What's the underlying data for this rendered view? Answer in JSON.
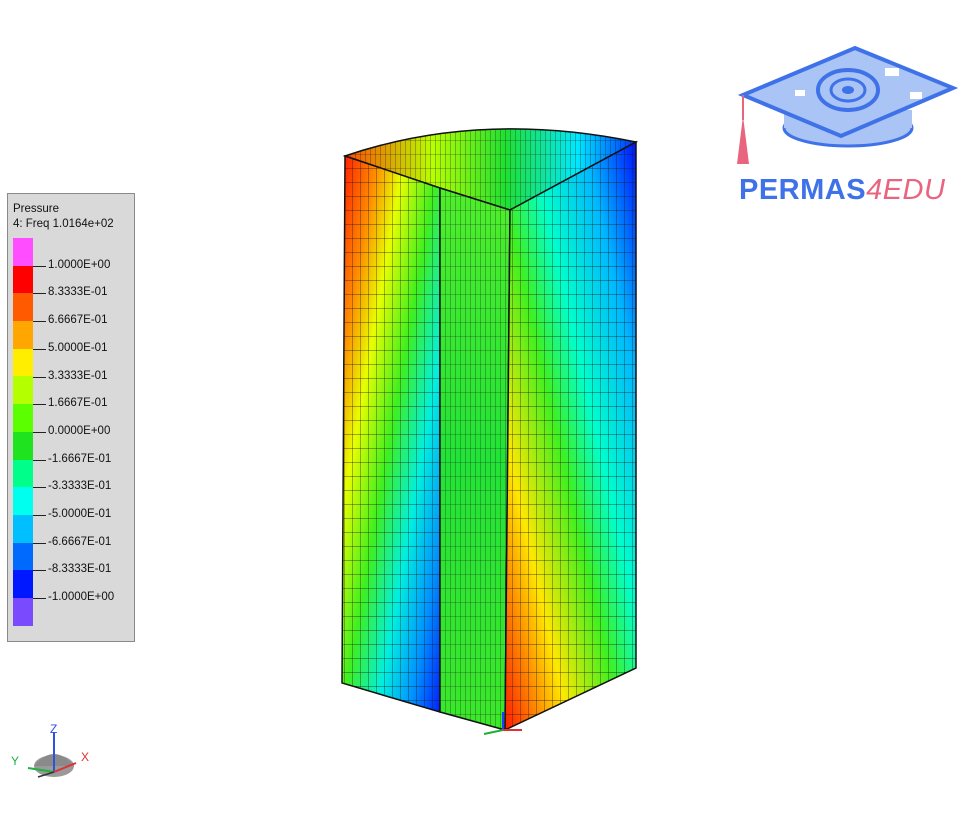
{
  "legend": {
    "title": "Pressure",
    "subtitle": "4: Freq 1.0164e+02",
    "colors": [
      "#ff4dff",
      "#ff0000",
      "#ff5a00",
      "#ffa600",
      "#ffee00",
      "#b4ff00",
      "#5cff00",
      "#1fe31f",
      "#00ff8a",
      "#00ffee",
      "#00bfff",
      "#006aff",
      "#0018ff",
      "#7a4aff"
    ],
    "labels": [
      "1.0000E+00",
      "8.3333E-01",
      "6.6667E-01",
      "5.0000E-01",
      "3.3333E-01",
      "1.6667E-01",
      "0.0000E+00",
      "-1.6667E-01",
      "-3.3333E-01",
      "-5.0000E-01",
      "-6.6667E-01",
      "-8.3333E-01",
      "-1.0000E+00"
    ]
  },
  "logo": {
    "text_main": "PERMAS",
    "text_accent": "4EDU",
    "colors": {
      "blue": "#3f72e8",
      "pink": "#e8647f",
      "light": "#a9c4f5"
    }
  },
  "triad": {
    "z": "Z",
    "y": "Y",
    "x": "X"
  },
  "model": {
    "icon": "quarter-cylinder-mesh"
  }
}
